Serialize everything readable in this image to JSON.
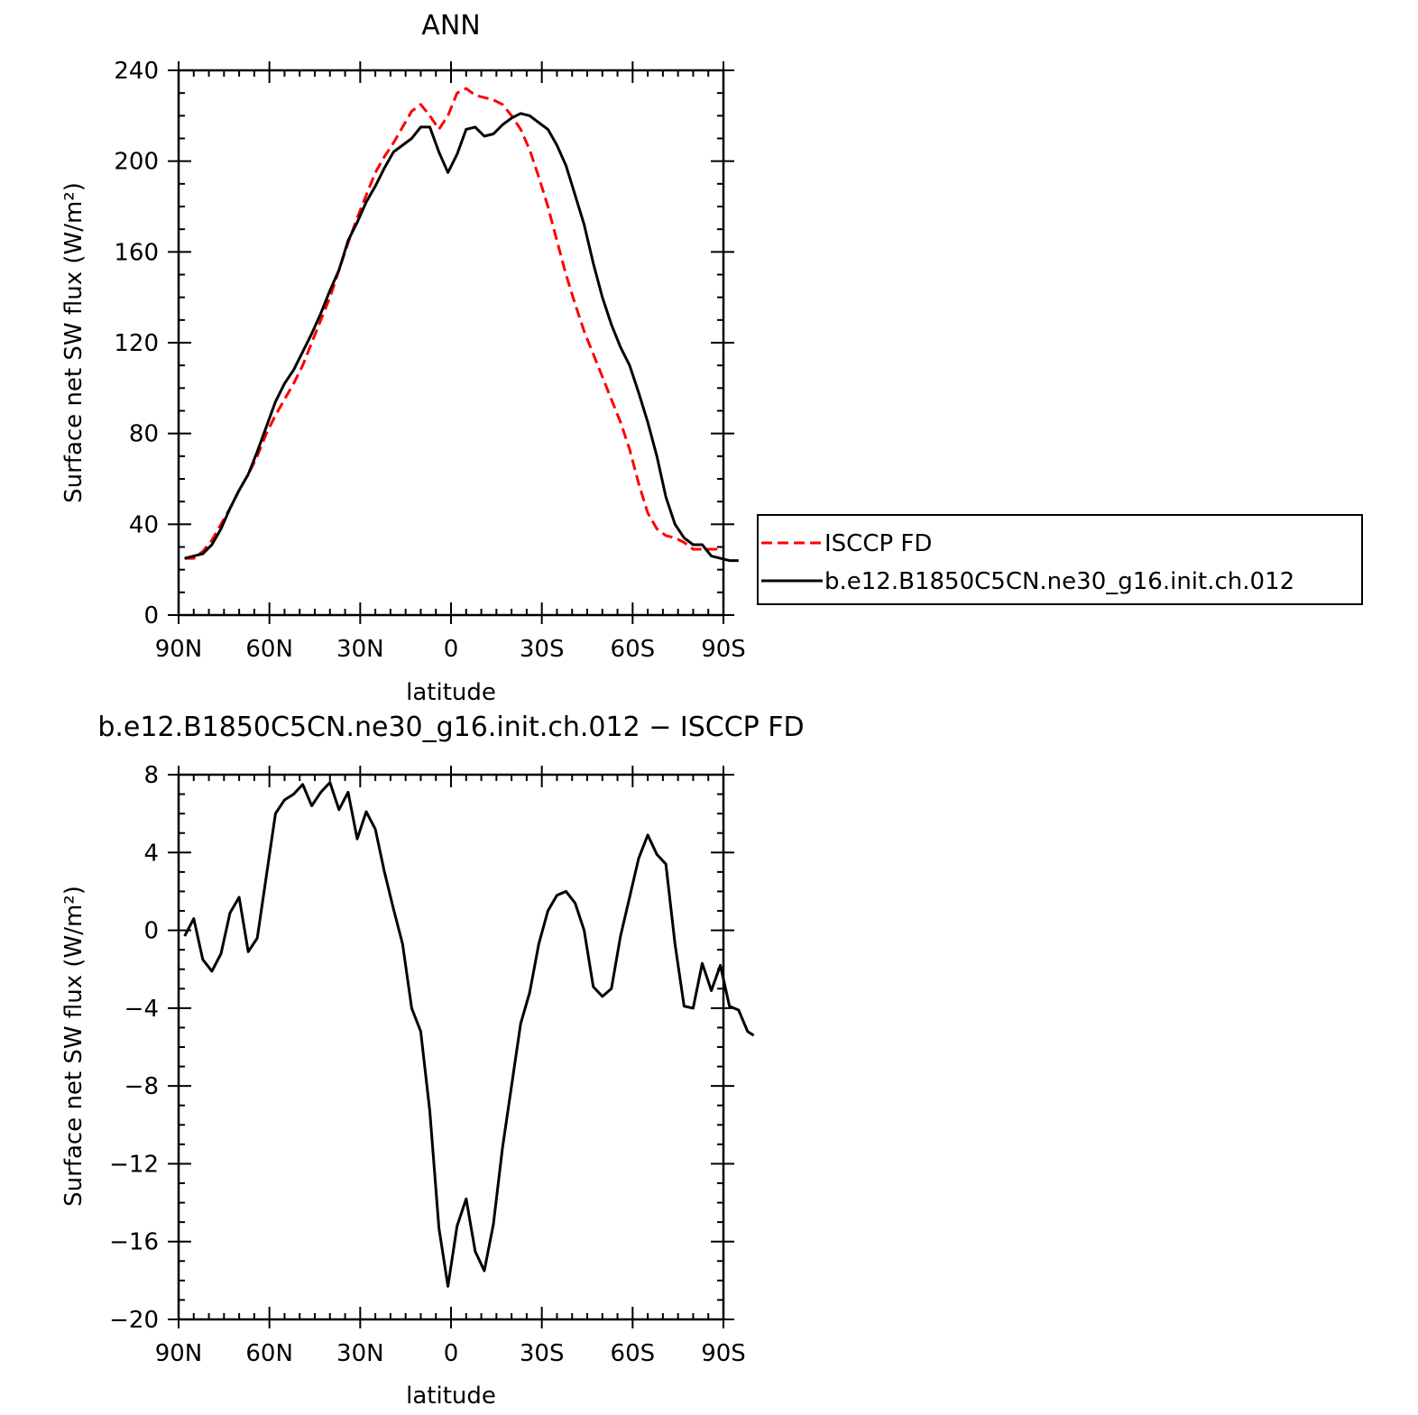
{
  "chart_data": [
    {
      "type": "line",
      "title": "ANN",
      "xlabel": "latitude",
      "ylabel": "Surface net SW flux (W/m²)",
      "xlim": [
        90,
        -90
      ],
      "ylim": [
        0,
        240
      ],
      "x_ticks": [
        90,
        60,
        30,
        0,
        -30,
        -60,
        -90
      ],
      "x_tick_labels": [
        "90N",
        "60N",
        "30N",
        "0",
        "30S",
        "60S",
        "90S"
      ],
      "y_ticks": [
        0,
        40,
        80,
        120,
        160,
        200,
        240
      ],
      "y_tick_labels": [
        "0",
        "40",
        "80",
        "120",
        "160",
        "200",
        "240"
      ],
      "legend_position": "right",
      "series": [
        {
          "name": "ISCCP FD",
          "color": "#ff0000",
          "dash": "dashed",
          "points": [
            [
              88,
              25
            ],
            [
              85,
              25
            ],
            [
              82,
              28
            ],
            [
              79,
              33
            ],
            [
              76,
              40
            ],
            [
              73,
              47
            ],
            [
              70,
              55
            ],
            [
              67,
              62
            ],
            [
              64,
              70
            ],
            [
              61,
              80
            ],
            [
              58,
              88
            ],
            [
              55,
              95
            ],
            [
              52,
              102
            ],
            [
              49,
              110
            ],
            [
              46,
              120
            ],
            [
              43,
              130
            ],
            [
              40,
              140
            ],
            [
              37,
              152
            ],
            [
              34,
              164
            ],
            [
              31,
              175
            ],
            [
              28,
              185
            ],
            [
              25,
              195
            ],
            [
              22,
              202
            ],
            [
              19,
              208
            ],
            [
              16,
              215
            ],
            [
              13,
              222
            ],
            [
              10,
              225
            ],
            [
              7,
              220
            ],
            [
              4,
              214
            ],
            [
              1,
              220
            ],
            [
              -2,
              230
            ],
            [
              -5,
              232
            ],
            [
              -8,
              229
            ],
            [
              -11,
              228
            ],
            [
              -14,
              227
            ],
            [
              -17,
              225
            ],
            [
              -20,
              220
            ],
            [
              -23,
              214
            ],
            [
              -26,
              205
            ],
            [
              -29,
              193
            ],
            [
              -32,
              180
            ],
            [
              -35,
              165
            ],
            [
              -38,
              150
            ],
            [
              -41,
              137
            ],
            [
              -44,
              125
            ],
            [
              -47,
              115
            ],
            [
              -50,
              105
            ],
            [
              -53,
              95
            ],
            [
              -56,
              85
            ],
            [
              -59,
              73
            ],
            [
              -62,
              58
            ],
            [
              -65,
              45
            ],
            [
              -68,
              38
            ],
            [
              -71,
              35
            ],
            [
              -74,
              34
            ],
            [
              -77,
              32
            ],
            [
              -80,
              29
            ],
            [
              -83,
              29
            ],
            [
              -86,
              29
            ],
            [
              -88,
              29
            ]
          ]
        },
        {
          "name": "b.e12.B1850C5CN.ne30_g16.init.ch.012",
          "color": "#000000",
          "dash": "solid",
          "points": [
            [
              88,
              25
            ],
            [
              85,
              26
            ],
            [
              82,
              27
            ],
            [
              79,
              31
            ],
            [
              76,
              38
            ],
            [
              73,
              47
            ],
            [
              70,
              55
            ],
            [
              67,
              62
            ],
            [
              64,
              72
            ],
            [
              61,
              83
            ],
            [
              58,
              94
            ],
            [
              55,
              102
            ],
            [
              52,
              108
            ],
            [
              49,
              116
            ],
            [
              46,
              124
            ],
            [
              43,
              133
            ],
            [
              40,
              143
            ],
            [
              37,
              152
            ],
            [
              34,
              165
            ],
            [
              31,
              173
            ],
            [
              28,
              182
            ],
            [
              25,
              189
            ],
            [
              22,
              197
            ],
            [
              19,
              204
            ],
            [
              16,
              207
            ],
            [
              13,
              210
            ],
            [
              10,
              215
            ],
            [
              7,
              215
            ],
            [
              4,
              204
            ],
            [
              1,
              195
            ],
            [
              -2,
              203
            ],
            [
              -5,
              214
            ],
            [
              -8,
              215
            ],
            [
              -11,
              211
            ],
            [
              -14,
              212
            ],
            [
              -17,
              216
            ],
            [
              -20,
              219
            ],
            [
              -23,
              221
            ],
            [
              -26,
              220
            ],
            [
              -29,
              217
            ],
            [
              -32,
              214
            ],
            [
              -35,
              207
            ],
            [
              -38,
              198
            ],
            [
              -41,
              185
            ],
            [
              -44,
              172
            ],
            [
              -47,
              155
            ],
            [
              -50,
              140
            ],
            [
              -53,
              128
            ],
            [
              -56,
              118
            ],
            [
              -59,
              110
            ],
            [
              -62,
              98
            ],
            [
              -65,
              85
            ],
            [
              -68,
              70
            ],
            [
              -71,
              52
            ],
            [
              -74,
              40
            ],
            [
              -77,
              34
            ],
            [
              -80,
              31
            ],
            [
              -83,
              31
            ],
            [
              -86,
              26
            ],
            [
              -89,
              25
            ],
            [
              -92,
              24
            ],
            [
              -95,
              24
            ]
          ]
        }
      ]
    },
    {
      "type": "line",
      "title": "b.e12.B1850C5CN.ne30_g16.init.ch.012 − ISCCP FD",
      "xlabel": "latitude",
      "ylabel": "Surface net SW flux (W/m²)",
      "xlim": [
        90,
        -90
      ],
      "ylim": [
        -20,
        8
      ],
      "x_ticks": [
        90,
        60,
        30,
        0,
        -30,
        -60,
        -90
      ],
      "x_tick_labels": [
        "90N",
        "60N",
        "30N",
        "0",
        "30S",
        "60S",
        "90S"
      ],
      "y_ticks": [
        -20,
        -16,
        -12,
        -8,
        -4,
        0,
        4,
        8
      ],
      "y_tick_labels": [
        "−20",
        "−16",
        "−12",
        "−8",
        "−4",
        "0",
        "4",
        "8"
      ],
      "series": [
        {
          "color": "#000000",
          "dash": "solid",
          "points": [
            [
              88,
              -0.3
            ],
            [
              85,
              0.6
            ],
            [
              82,
              -1.5
            ],
            [
              79,
              -2.1
            ],
            [
              76,
              -1.2
            ],
            [
              73,
              0.9
            ],
            [
              70,
              1.7
            ],
            [
              67,
              -1.1
            ],
            [
              64,
              -0.4
            ],
            [
              61,
              2.8
            ],
            [
              58,
              6
            ],
            [
              55,
              6.7
            ],
            [
              52,
              7
            ],
            [
              49,
              7.5
            ],
            [
              46,
              6.4
            ],
            [
              43,
              7.1
            ],
            [
              40,
              7.6
            ],
            [
              37,
              6.2
            ],
            [
              34,
              7.1
            ],
            [
              31,
              4.7
            ],
            [
              28,
              6.1
            ],
            [
              25,
              5.2
            ],
            [
              22,
              3
            ],
            [
              19,
              1.1
            ],
            [
              16,
              -0.7
            ],
            [
              13,
              -4
            ],
            [
              10,
              -5.2
            ],
            [
              7,
              -9.3
            ],
            [
              4,
              -15.3
            ],
            [
              1,
              -18.3
            ],
            [
              -2,
              -15.2
            ],
            [
              -5,
              -13.8
            ],
            [
              -8,
              -16.5
            ],
            [
              -11,
              -17.5
            ],
            [
              -14,
              -15.1
            ],
            [
              -17,
              -11.2
            ],
            [
              -20,
              -8
            ],
            [
              -23,
              -4.8
            ],
            [
              -26,
              -3.2
            ],
            [
              -29,
              -0.7
            ],
            [
              -32,
              1
            ],
            [
              -35,
              1.8
            ],
            [
              -38,
              2
            ],
            [
              -41,
              1.4
            ],
            [
              -44,
              0
            ],
            [
              -47,
              -2.9
            ],
            [
              -50,
              -3.4
            ],
            [
              -53,
              -3
            ],
            [
              -56,
              -0.3
            ],
            [
              -59,
              1.7
            ],
            [
              -62,
              3.7
            ],
            [
              -65,
              4.9
            ],
            [
              -68,
              3.9
            ],
            [
              -71,
              3.4
            ],
            [
              -74,
              -0.7
            ],
            [
              -77,
              -3.9
            ],
            [
              -80,
              -4
            ],
            [
              -83,
              -1.7
            ],
            [
              -86,
              -3.1
            ],
            [
              -89,
              -1.8
            ],
            [
              -92,
              -3.9
            ],
            [
              -95,
              -4.1
            ],
            [
              -98,
              -5.2
            ],
            [
              -100,
              -5.4
            ]
          ]
        }
      ]
    }
  ]
}
